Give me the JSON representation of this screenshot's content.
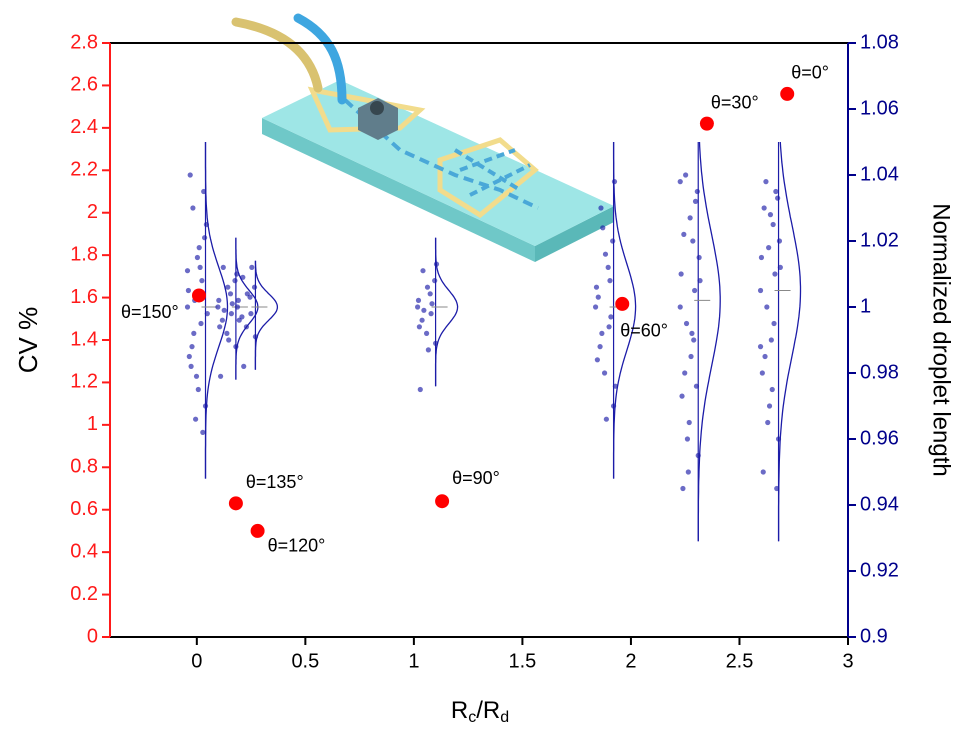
{
  "chart_data": {
    "type": "scatter",
    "xlabel_parts": [
      "R",
      "c",
      "/R",
      "d"
    ],
    "ylabel": "CV %",
    "y2label": "Normalized droplet length",
    "xlim": [
      -0.4,
      3
    ],
    "xticks": [
      0,
      0.5,
      1,
      1.5,
      2,
      2.5,
      3
    ],
    "ylim": [
      0,
      2.8
    ],
    "yticks": [
      0,
      0.2,
      0.4,
      0.6,
      0.8,
      1,
      1.2,
      1.4,
      1.6,
      1.8,
      2,
      2.2,
      2.4,
      2.6,
      2.8
    ],
    "y2lim": [
      0.9,
      1.08
    ],
    "y2ticks": [
      0.9,
      0.92,
      0.94,
      0.96,
      0.98,
      1,
      1.02,
      1.04,
      1.06,
      1.08
    ],
    "ycolor": "#ff1a1a",
    "y2color": "#00008b",
    "points": {
      "color": "#ff0000",
      "x": [
        0.01,
        0.18,
        0.28,
        1.13,
        1.96,
        2.35,
        2.72
      ],
      "values": [
        1.61,
        0.63,
        0.5,
        0.64,
        1.57,
        2.42,
        2.56
      ],
      "labels": [
        "θ=150°",
        "θ=135°",
        "θ=120°",
        "θ=90°",
        "θ=60°",
        "θ=30°",
        "θ=0°"
      ]
    },
    "distributions": {
      "axis": "y2",
      "color": "#1c1ca8",
      "groups": [
        {
          "x": 0.04,
          "mean": 1.0,
          "sd": 0.012,
          "min": 0.948,
          "max": 1.05,
          "values": [
            1.0,
            1.012,
            0.988,
            1.021,
            0.979,
            1.005,
            0.995,
            1.03,
            0.97,
            1.015,
            0.985,
            1.008,
            0.992,
            1.025,
            0.975,
            1.04,
            0.962,
            1.002,
            0.998,
            1.018,
            0.982,
            1.035,
            0.966,
            1.011
          ]
        },
        {
          "x": 0.18,
          "mean": 1.0,
          "sd": 0.005,
          "min": 0.978,
          "max": 1.021,
          "values": [
            1.0,
            1.004,
            0.996,
            1.008,
            0.992,
            1.002,
            0.998,
            1.012,
            0.988,
            1.006,
            0.994,
            1.001,
            0.999,
            1.01,
            0.99,
            0.979
          ]
        },
        {
          "x": 0.27,
          "mean": 1.0,
          "sd": 0.004,
          "min": 0.981,
          "max": 1.014,
          "values": [
            1.0,
            1.003,
            0.997,
            1.006,
            0.994,
            1.002,
            0.998,
            1.009,
            0.991,
            1.004,
            0.996,
            1.012,
            0.982
          ]
        },
        {
          "x": 1.1,
          "mean": 1.0,
          "sd": 0.005,
          "min": 0.976,
          "max": 1.021,
          "values": [
            1.0,
            1.004,
            0.996,
            1.008,
            0.992,
            1.002,
            0.998,
            1.011,
            0.989,
            1.006,
            0.994,
            1.001,
            0.999,
            1.013,
            0.987,
            0.975
          ]
        },
        {
          "x": 1.92,
          "mean": 1.0,
          "sd": 0.013,
          "min": 0.948,
          "max": 1.05,
          "values": [
            1.0,
            1.012,
            0.988,
            1.02,
            0.98,
            1.006,
            0.994,
            1.03,
            0.97,
            1.016,
            0.984,
            1.008,
            0.992,
            1.038,
            0.966,
            1.003,
            0.997,
            1.024,
            0.976
          ]
        },
        {
          "x": 2.31,
          "mean": 1.002,
          "sd": 0.02,
          "min": 0.929,
          "max": 1.05,
          "values": [
            1.0,
            1.02,
            0.98,
            1.035,
            0.965,
            1.01,
            0.99,
            1.04,
            0.955,
            1.027,
            0.973,
            1.005,
            0.995,
            1.015,
            0.985,
            0.945,
            1.032,
            0.96,
            1.008,
            0.992,
            1.022,
            0.976,
            0.95,
            1.038
          ]
        },
        {
          "x": 2.68,
          "mean": 1.005,
          "sd": 0.02,
          "min": 0.929,
          "max": 1.05,
          "values": [
            1.005,
            1.025,
            0.985,
            1.033,
            0.97,
            1.015,
            0.995,
            1.038,
            0.96,
            1.028,
            0.98,
            1.01,
            1.0,
            1.02,
            0.99,
            0.95,
            1.035,
            0.965,
            1.012,
            0.975,
            1.03,
            0.945,
            1.018,
            0.988
          ]
        }
      ]
    }
  }
}
